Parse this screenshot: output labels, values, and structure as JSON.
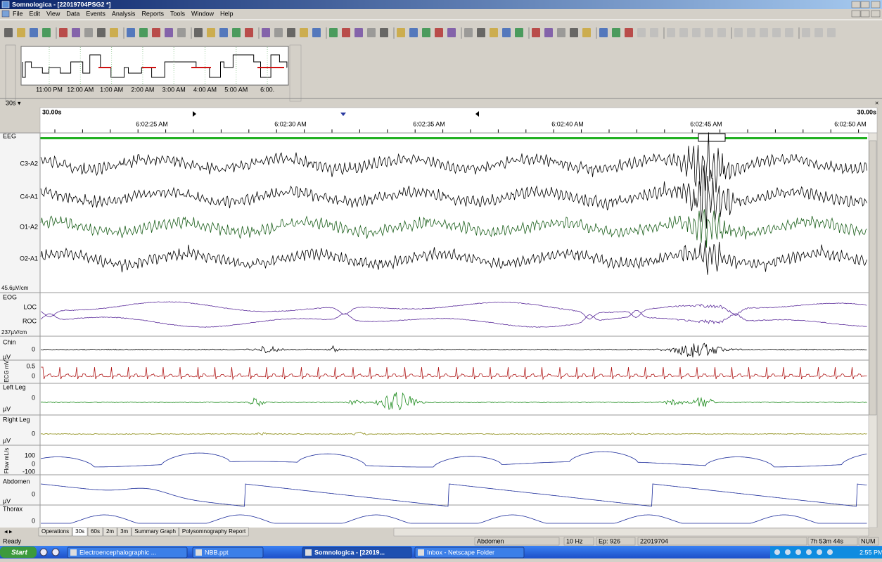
{
  "window": {
    "title": "Somnologica - [22019704PSG2 *]"
  },
  "menu": [
    "File",
    "Edit",
    "View",
    "Data",
    "Events",
    "Analysis",
    "Reports",
    "Tools",
    "Window",
    "Help"
  ],
  "overview": {
    "time_labels": [
      "11:00 PM",
      "12:00 AM",
      "1:00 AM",
      "2:00 AM",
      "3:00 AM",
      "4:00 AM",
      "5:00 AM",
      "6:00."
    ]
  },
  "view": {
    "span": "30s ▾",
    "left_span": "30.00s",
    "right_span": "30.00s",
    "time_labels": [
      "6:02:25 AM",
      "6:02:30 AM",
      "6:02:35 AM",
      "6:02:40 AM",
      "6:02:45 AM",
      "6:02:50 AM"
    ]
  },
  "channels": {
    "eeg": {
      "group": "EEG",
      "labels": [
        "C3-A2",
        "C4-A1",
        "O1-A2",
        "O2-A1"
      ],
      "scale": "45.6µV/cm"
    },
    "eog": {
      "group": "EOG",
      "labels": [
        "LOC",
        "ROC"
      ],
      "scale": "237µV/cm"
    },
    "chin": {
      "name": "Chin",
      "zero": "0",
      "unit": "µV"
    },
    "ecg": {
      "name": "ECG mV",
      "top": "0.5",
      "zero": "0"
    },
    "left_leg": {
      "name": "Left Leg",
      "zero": "0",
      "unit": "µV"
    },
    "right_leg": {
      "name": "Right Leg",
      "zero": "0",
      "unit": "µV"
    },
    "flow": {
      "name": "Flow mL/s",
      "top": "100",
      "zero": "0",
      "bottom": "-100"
    },
    "abdomen": {
      "name": "Abdomen",
      "zero": "0",
      "unit": "µV"
    },
    "thorax": {
      "name": "Thorax",
      "zero": "0"
    }
  },
  "tabs": [
    "Operations",
    "30s",
    "60s",
    "2m",
    "3m",
    "Summary Graph",
    "Polysomnography Report"
  ],
  "status": {
    "ready": "Ready",
    "channel": "Abdomen",
    "rate": "10 Hz",
    "epoch": "Ep: 926",
    "id": "22019704",
    "elapsed": "7h 53m 44s",
    "num": "NUM"
  },
  "taskbar": {
    "start": "Start",
    "items": [
      "Electroencephalographic ...",
      "NBB.ppt",
      "Somnologica - [22019...",
      "Inbox - Netscape Folder"
    ],
    "clock": "2:55 PM"
  }
}
